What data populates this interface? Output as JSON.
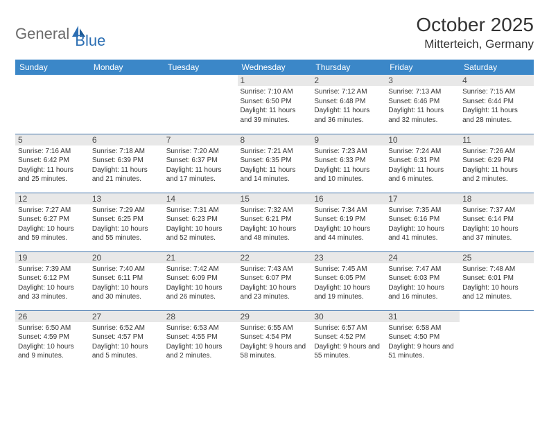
{
  "logo": {
    "text1": "General",
    "text2": "Blue"
  },
  "title": "October 2025",
  "location": "Mitterteich, Germany",
  "colors": {
    "header_bg": "#3b87c8",
    "header_fg": "#ffffff",
    "daynum_bg": "#e8e8e8",
    "rule": "#3b6fa8",
    "logo_gray": "#6b6b6b",
    "logo_blue": "#2d6fb3"
  },
  "dayNames": [
    "Sunday",
    "Monday",
    "Tuesday",
    "Wednesday",
    "Thursday",
    "Friday",
    "Saturday"
  ],
  "weeks": [
    [
      null,
      null,
      null,
      {
        "n": "1",
        "sr": "7:10 AM",
        "ss": "6:50 PM",
        "dl": "11 hours and 39 minutes."
      },
      {
        "n": "2",
        "sr": "7:12 AM",
        "ss": "6:48 PM",
        "dl": "11 hours and 36 minutes."
      },
      {
        "n": "3",
        "sr": "7:13 AM",
        "ss": "6:46 PM",
        "dl": "11 hours and 32 minutes."
      },
      {
        "n": "4",
        "sr": "7:15 AM",
        "ss": "6:44 PM",
        "dl": "11 hours and 28 minutes."
      }
    ],
    [
      {
        "n": "5",
        "sr": "7:16 AM",
        "ss": "6:42 PM",
        "dl": "11 hours and 25 minutes."
      },
      {
        "n": "6",
        "sr": "7:18 AM",
        "ss": "6:39 PM",
        "dl": "11 hours and 21 minutes."
      },
      {
        "n": "7",
        "sr": "7:20 AM",
        "ss": "6:37 PM",
        "dl": "11 hours and 17 minutes."
      },
      {
        "n": "8",
        "sr": "7:21 AM",
        "ss": "6:35 PM",
        "dl": "11 hours and 14 minutes."
      },
      {
        "n": "9",
        "sr": "7:23 AM",
        "ss": "6:33 PM",
        "dl": "11 hours and 10 minutes."
      },
      {
        "n": "10",
        "sr": "7:24 AM",
        "ss": "6:31 PM",
        "dl": "11 hours and 6 minutes."
      },
      {
        "n": "11",
        "sr": "7:26 AM",
        "ss": "6:29 PM",
        "dl": "11 hours and 2 minutes."
      }
    ],
    [
      {
        "n": "12",
        "sr": "7:27 AM",
        "ss": "6:27 PM",
        "dl": "10 hours and 59 minutes."
      },
      {
        "n": "13",
        "sr": "7:29 AM",
        "ss": "6:25 PM",
        "dl": "10 hours and 55 minutes."
      },
      {
        "n": "14",
        "sr": "7:31 AM",
        "ss": "6:23 PM",
        "dl": "10 hours and 52 minutes."
      },
      {
        "n": "15",
        "sr": "7:32 AM",
        "ss": "6:21 PM",
        "dl": "10 hours and 48 minutes."
      },
      {
        "n": "16",
        "sr": "7:34 AM",
        "ss": "6:19 PM",
        "dl": "10 hours and 44 minutes."
      },
      {
        "n": "17",
        "sr": "7:35 AM",
        "ss": "6:16 PM",
        "dl": "10 hours and 41 minutes."
      },
      {
        "n": "18",
        "sr": "7:37 AM",
        "ss": "6:14 PM",
        "dl": "10 hours and 37 minutes."
      }
    ],
    [
      {
        "n": "19",
        "sr": "7:39 AM",
        "ss": "6:12 PM",
        "dl": "10 hours and 33 minutes."
      },
      {
        "n": "20",
        "sr": "7:40 AM",
        "ss": "6:11 PM",
        "dl": "10 hours and 30 minutes."
      },
      {
        "n": "21",
        "sr": "7:42 AM",
        "ss": "6:09 PM",
        "dl": "10 hours and 26 minutes."
      },
      {
        "n": "22",
        "sr": "7:43 AM",
        "ss": "6:07 PM",
        "dl": "10 hours and 23 minutes."
      },
      {
        "n": "23",
        "sr": "7:45 AM",
        "ss": "6:05 PM",
        "dl": "10 hours and 19 minutes."
      },
      {
        "n": "24",
        "sr": "7:47 AM",
        "ss": "6:03 PM",
        "dl": "10 hours and 16 minutes."
      },
      {
        "n": "25",
        "sr": "7:48 AM",
        "ss": "6:01 PM",
        "dl": "10 hours and 12 minutes."
      }
    ],
    [
      {
        "n": "26",
        "sr": "6:50 AM",
        "ss": "4:59 PM",
        "dl": "10 hours and 9 minutes."
      },
      {
        "n": "27",
        "sr": "6:52 AM",
        "ss": "4:57 PM",
        "dl": "10 hours and 5 minutes."
      },
      {
        "n": "28",
        "sr": "6:53 AM",
        "ss": "4:55 PM",
        "dl": "10 hours and 2 minutes."
      },
      {
        "n": "29",
        "sr": "6:55 AM",
        "ss": "4:54 PM",
        "dl": "9 hours and 58 minutes."
      },
      {
        "n": "30",
        "sr": "6:57 AM",
        "ss": "4:52 PM",
        "dl": "9 hours and 55 minutes."
      },
      {
        "n": "31",
        "sr": "6:58 AM",
        "ss": "4:50 PM",
        "dl": "9 hours and 51 minutes."
      },
      null
    ]
  ],
  "labels": {
    "sunrise": "Sunrise:",
    "sunset": "Sunset:",
    "daylight": "Daylight:"
  }
}
